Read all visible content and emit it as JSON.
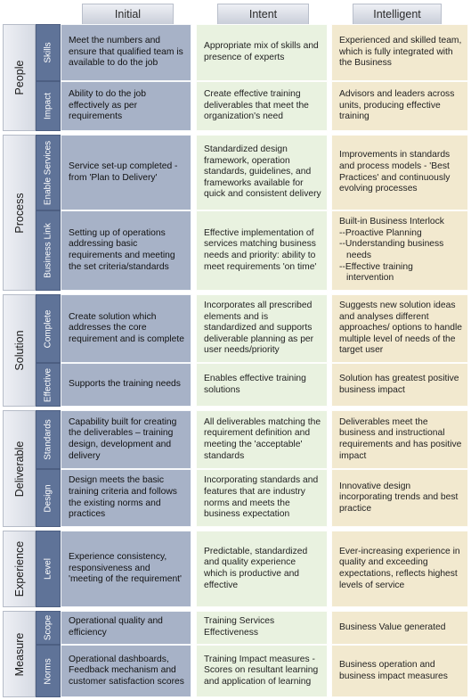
{
  "headers": {
    "initial": "Initial",
    "intent": "Intent",
    "intelligent": "Intelligent"
  },
  "groups": {
    "people": "People",
    "process": "Process",
    "solution": "Solution",
    "deliverable": "Deliverable",
    "experience": "Experience",
    "measure": "Measure"
  },
  "rows": [
    {
      "sub": "Skills",
      "initial": "Meet the numbers and ensure that qualified team is available to do the job",
      "intent": "Appropriate mix of skills and presence of experts",
      "intelligent": "Experienced and skilled team, which is fully integrated with the Business"
    },
    {
      "sub": "Impact",
      "initial": "Ability to do the job effectively as per requirements",
      "intent": "Create effective training deliverables that meet the organization's need",
      "intelligent": "Advisors and leaders across units, producing effective training"
    },
    {
      "sub": "Enable Services",
      "initial": "Service set-up completed - from 'Plan to Delivery'",
      "intent": "Standardized design framework, operation standards, guidelines, and frameworks available for quick and consistent delivery",
      "intelligent": "Improvements in standards and process models - 'Best Practices' and continuously evolving processes"
    },
    {
      "sub": "Business Link",
      "initial": "Setting up of operations addressing basic requirements and meeting the set criteria/standards",
      "intent": "Effective implementation of services matching business needs and priority: ability to meet requirements 'on time'",
      "intelligent_lines": [
        "Built-in Business Interlock",
        "--Proactive Planning",
        "--Understanding business needs",
        "--Effective training intervention"
      ]
    },
    {
      "sub": "Complete",
      "initial": "Create solution which addresses the core requirement and is complete",
      "intent": "Incorporates all prescribed elements and is standardized and supports deliverable planning as per user needs/priority",
      "intelligent": "Suggests new solution ideas and analyses different approaches/ options to handle multiple level of needs of the target user"
    },
    {
      "sub": "Effective",
      "initial": "Supports the training needs",
      "intent": "Enables effective training solutions",
      "intelligent": "Solution has greatest positive business impact"
    },
    {
      "sub": "Standards",
      "initial": "Capability built for creating the deliverables – training design, development and delivery",
      "intent": "All deliverables matching the requirement definition and meeting the 'acceptable' standards",
      "intelligent": "Deliverables meet the business and instructional requirements and has positive impact"
    },
    {
      "sub": "Design",
      "initial": "Design meets the basic training criteria and follows the existing norms and practices",
      "intent": "Incorporating standards and features that are industry norms and meets the business expectation",
      "intelligent": "Innovative design incorporating trends and best practice"
    },
    {
      "sub": "Level",
      "initial": "Experience consistency, responsiveness and 'meeting of the requirement'",
      "intent": "Predictable, standardized and quality experience which is productive and effective",
      "intelligent": "Ever-increasing experience in quality and exceeding expectations, reflects highest levels of service"
    },
    {
      "sub": "Scope",
      "initial": "Operational quality and efficiency",
      "intent": "Training Services Effectiveness",
      "intelligent": "Business Value generated"
    },
    {
      "sub": "Norms",
      "initial": "Operational dashboards, Feedback mechanism and customer satisfaction scores",
      "intent": "Training Impact measures - Scores on resultant learning and application of learning",
      "intelligent": "Business operation and business impact measures"
    }
  ]
}
